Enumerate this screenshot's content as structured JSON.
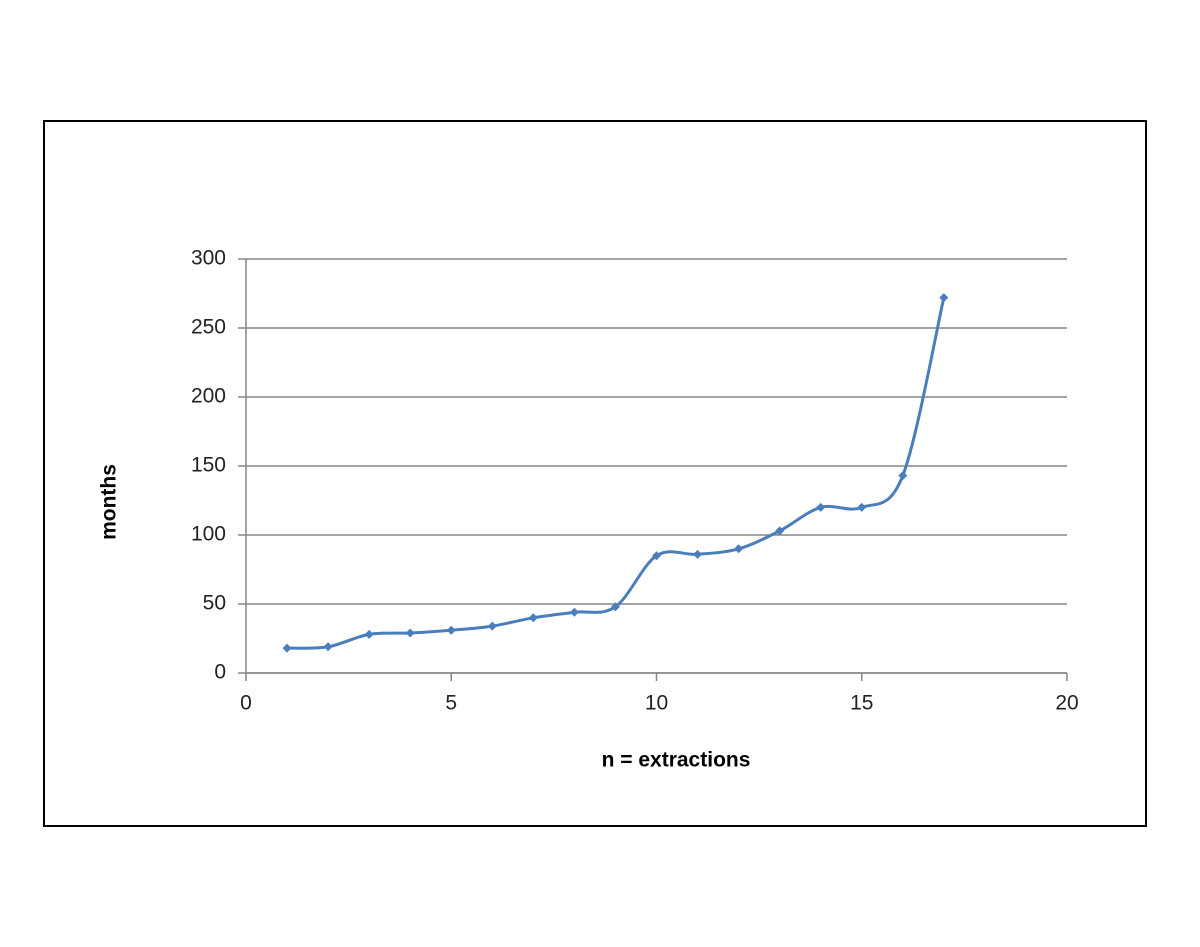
{
  "chart_data": {
    "type": "line",
    "smooth": true,
    "xlabel": "n = extractions",
    "ylabel": "months",
    "x": [
      1,
      2,
      3,
      4,
      5,
      6,
      7,
      8,
      9,
      10,
      11,
      12,
      13,
      14,
      15,
      16,
      17
    ],
    "series": [
      {
        "name": "months",
        "color": "#4a7ebb",
        "values": [
          18,
          19,
          28,
          29,
          31,
          34,
          40,
          44,
          48,
          85,
          86,
          90,
          103,
          120,
          120,
          143,
          272
        ]
      }
    ],
    "xlim": [
      0,
      20
    ],
    "xticks": [
      0,
      5,
      10,
      15,
      20
    ],
    "ylim": [
      0,
      300
    ],
    "yticks": [
      0,
      50,
      100,
      150,
      200,
      250,
      300
    ],
    "grid": true
  }
}
